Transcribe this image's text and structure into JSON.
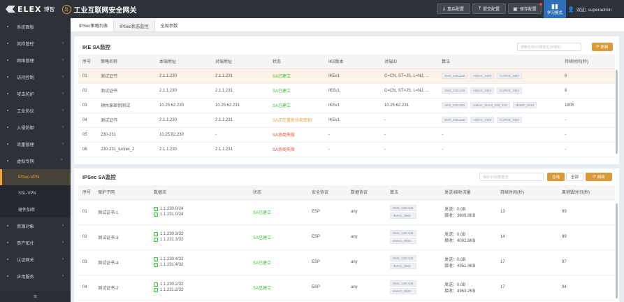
{
  "header": {
    "brand_logo": "ELEX",
    "brand_cn": "博智",
    "seal_char": "昌",
    "product": "工业互联网安全网关",
    "buttons": {
      "reboot": "重启配置",
      "submit": "提交配置",
      "save": "保存配置"
    },
    "study_mode": "学习模式",
    "user": "欢迎, superadmin"
  },
  "sidebar": {
    "items": [
      {
        "label": "系统面板",
        "icon": "dashboard-icon"
      },
      {
        "label": "风险管控",
        "icon": "risk-icon"
      },
      {
        "label": "网络管理",
        "icon": "network-icon"
      },
      {
        "label": "访问控制",
        "icon": "access-icon"
      },
      {
        "label": "攻击防护",
        "icon": "attack-icon"
      },
      {
        "label": "工业协议",
        "icon": "protocol-icon"
      },
      {
        "label": "入侵防御",
        "icon": "intrusion-icon"
      },
      {
        "label": "流量管理",
        "icon": "traffic-icon"
      },
      {
        "label": "虚拟专网",
        "icon": "vpn-icon"
      }
    ],
    "sub_items": [
      "IPSec-VPN",
      "SSL-VPN",
      "硬件加密"
    ],
    "bottom_items": [
      {
        "label": "资源对象",
        "icon": "resource-icon"
      },
      {
        "label": "资产拓扑",
        "icon": "topology-icon"
      },
      {
        "label": "认证网关",
        "icon": "auth-icon"
      },
      {
        "label": "应用服务",
        "icon": "app-icon"
      },
      {
        "label": "运行维护",
        "icon": "maintain-icon"
      }
    ]
  },
  "tabs": [
    "IPSec策略列表",
    "IPSec状态监控",
    "全局参数"
  ],
  "ike": {
    "title": "IKE SA监控",
    "search_placeholder": "搜索名称/对端地址/对端ID",
    "refresh": "刷新",
    "columns": [
      "序号",
      "策略名称",
      "本端地址",
      "对端地址",
      "状态",
      "IKE版本",
      "对端ID",
      "算法",
      "持续时间(秒)"
    ],
    "rows": [
      {
        "no": "01",
        "name": "测试证书",
        "local": "2.1.1.230",
        "peer": "2.1.1.231",
        "status": "SA已建立",
        "status_kind": "ok",
        "ver": "IKEv1",
        "peer_id": "C=CN, ST=JS, L=NJ, ...",
        "algs": [
          "SM4_CBC128",
          "HMAC_SM3",
          "CURVE_SM2"
        ],
        "dur": "6"
      },
      {
        "no": "02",
        "name": "测试证书",
        "local": "2.1.1.230",
        "peer": "2.1.1.231",
        "status": "SA已建立",
        "status_kind": "ok",
        "ver": "IKEv1",
        "peer_id": "C=CN, ST=JS, L=NJ, ...",
        "algs": [
          "SM4_CBC128",
          "HMAC_SM3",
          "CURVE_SM2"
        ],
        "dur": "8"
      },
      {
        "no": "03",
        "name": "预共享密钥测试",
        "local": "10.25.62.230",
        "peer": "10.25.62.231",
        "status": "SA已建立",
        "status_kind": "ok",
        "ver": "IKEv1",
        "peer_id": "10.25.62.231",
        "algs": [
          "AES_CBC256",
          "HMAC_SHA2_256_128",
          "MODP_2048"
        ],
        "dur": "1805"
      },
      {
        "no": "04",
        "name": "测试证书",
        "local": "2.1.1.230",
        "peer": "2.1.1.231",
        "status": "SA正在重新协商密钥",
        "status_kind": "warn",
        "ver": "IKEv1",
        "peer_id": "-",
        "algs": [
          "SM4_CBC128",
          "HMAC_SM3",
          "CURVE_SM2"
        ],
        "dur": "-"
      },
      {
        "no": "05",
        "name": "230-231",
        "local": "10.25.62.230",
        "peer": "-",
        "status": "SA协商失败",
        "status_kind": "fail",
        "ver": "-",
        "peer_id": "-",
        "algs": [],
        "alg_text": "-",
        "dur": "-"
      },
      {
        "no": "06",
        "name": "230-231_tunnel_2",
        "local": "2.1.1.230",
        "peer": "2.1.1.231",
        "status": "SA协商失败",
        "status_kind": "fail",
        "ver": "-",
        "peer_id": "-",
        "algs": [],
        "alg_text": "-",
        "dur": "-"
      }
    ]
  },
  "ipsec": {
    "title": "IPSec SA监控",
    "search_placeholder": "保护子网/数据流",
    "online": "在线",
    "all": "全部",
    "refresh": "刷新",
    "columns": [
      "序号",
      "保护子网",
      "数据流",
      "状态",
      "安全协议",
      "数据协议",
      "算法",
      "发送/接收流量",
      "持续时间(秒)",
      "离销毁时间(秒)"
    ],
    "rows": [
      {
        "no": "01",
        "name": "测试证书-1",
        "flows": [
          "1.1.230.0/24",
          "1.1.231.0/24"
        ],
        "status": "SA已建立",
        "proto": "ESP",
        "data": "any",
        "algs": [
          "SM4_CBC128",
          "HMAC_SM3"
        ],
        "sent": "发送：0.0B",
        "recv": "接收：3809.8KB",
        "dur": "13",
        "remain": "99"
      },
      {
        "no": "02",
        "name": "测试证书-3",
        "flows": [
          "1.1.230.3/32",
          "1.1.231.3/32"
        ],
        "status": "SA已建立",
        "proto": "ESP",
        "data": "any",
        "algs": [
          "SM4_CBC128",
          "HMAC_SM3"
        ],
        "sent": "发送：0.0B",
        "recv": "接收：4092.8KB",
        "dur": "14",
        "remain": "99"
      },
      {
        "no": "03",
        "name": "测试证书-4",
        "flows": [
          "1.1.230.4/32",
          "1.1.231.4/32"
        ],
        "status": "SA已建立",
        "proto": "ESP",
        "data": "any",
        "algs": [
          "SM4_CBC128",
          "HMAC_SM3"
        ],
        "sent": "发送：0.0B",
        "recv": "接收：4951.4KB",
        "dur": "17",
        "remain": "97"
      },
      {
        "no": "04",
        "name": "测试证书-2",
        "flows": [
          "1.1.230.2/32",
          "1.1.231.2/32"
        ],
        "status": "SA已建立",
        "proto": "ESP",
        "data": "any",
        "algs": [
          "SM4_CBC128",
          "HMAC_SM3"
        ],
        "sent": "发送：0.0B",
        "recv": "接收：4963.2KB",
        "dur": "17",
        "remain": "94"
      }
    ]
  },
  "colors": {
    "accent": "#d99a3a",
    "ok": "#3dbb3d",
    "fail": "#e24b3d",
    "warn": "#e8a03a",
    "nav": "#2d3138"
  }
}
